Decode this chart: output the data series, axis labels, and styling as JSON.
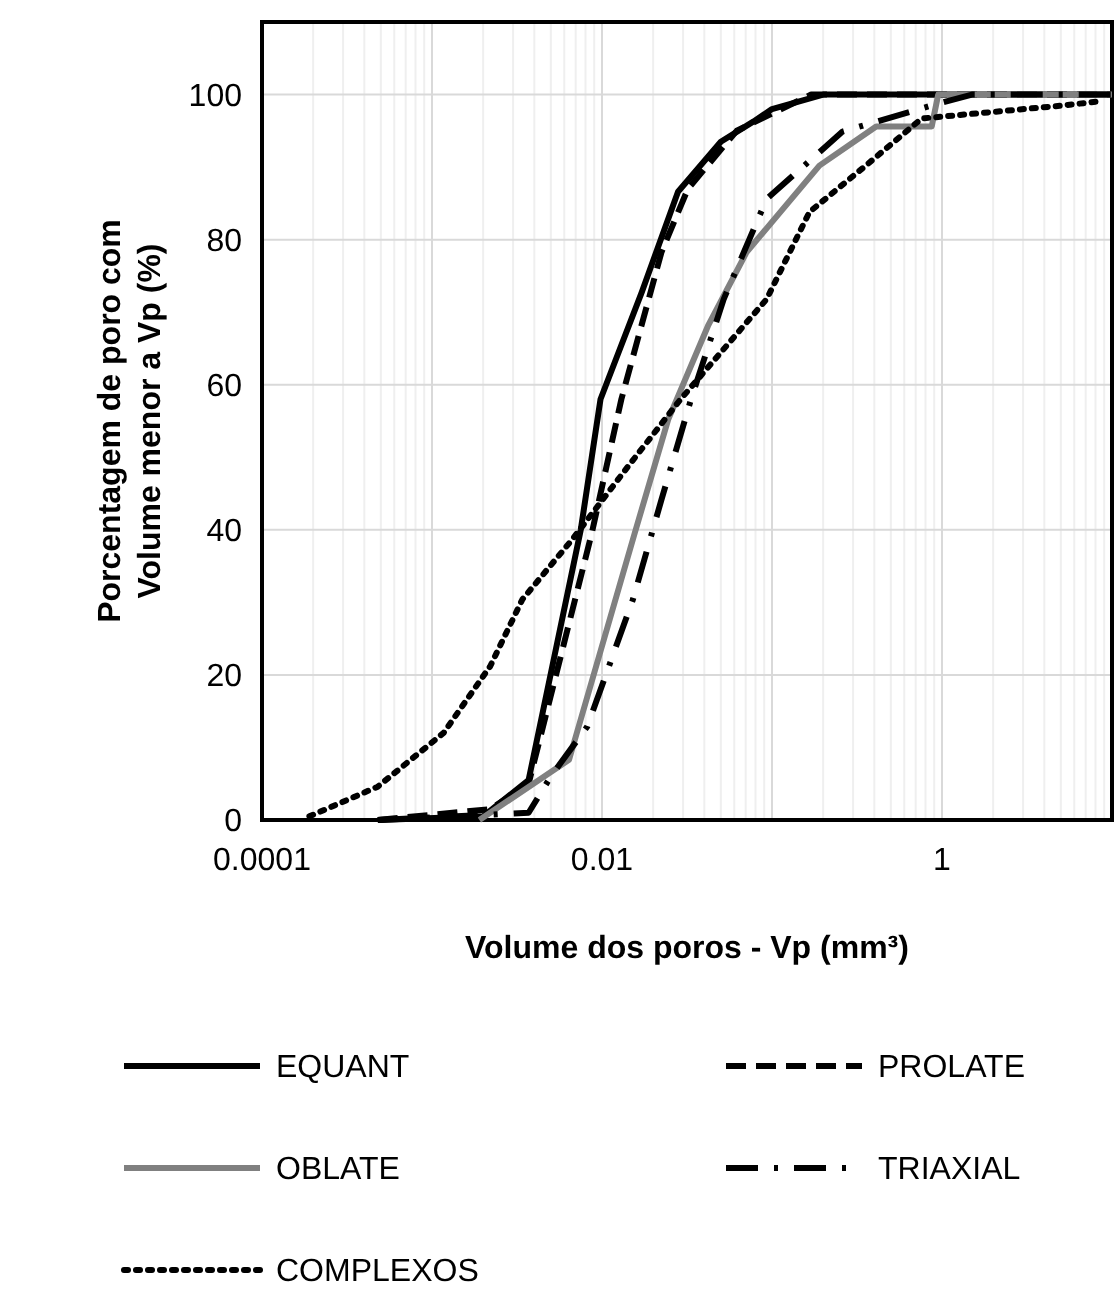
{
  "chart_data": {
    "type": "line",
    "xlabel": "Volume dos poros - Vp (mm³)",
    "ylabel": "Porcentagem de poro com\nVolume menor a  Vp (%)",
    "log": "x",
    "grid": true,
    "legend": "bottom",
    "xlim": [
      0.0001,
      10
    ],
    "xticks": [
      0.0001,
      {
        "value": 0.001,
        "label": null
      },
      0.01,
      {
        "value": 0.1,
        "label": null
      },
      1,
      {
        "value": 10,
        "label": null
      }
    ],
    "ylim": [
      0,
      110
    ],
    "yticks": [
      0,
      20,
      40,
      60,
      80,
      100
    ],
    "series": [
      {
        "name": "EQUANT",
        "color": "#000000",
        "line_style": "solid",
        "x": [
          0.00048,
          0.002,
          0.0037,
          0.0075,
          0.0098,
          0.0171,
          0.028,
          0.05,
          0.078,
          0.1,
          0.2,
          10
        ],
        "values": [
          0,
          0.5,
          5.5,
          40,
          58,
          72.7,
          86.6,
          93.5,
          96.3,
          98,
          100,
          100
        ]
      },
      {
        "name": "PROLATE",
        "color": "#000000",
        "line_style": "dashed",
        "x": [
          0.00048,
          0.0022,
          0.0037,
          0.0087,
          0.013,
          0.0224,
          0.032,
          0.062,
          0.17,
          10
        ],
        "values": [
          0,
          1.5,
          5,
          39.5,
          58,
          78.3,
          87,
          95,
          100,
          100
        ]
      },
      {
        "name": "OBLATE",
        "color": "#808080",
        "line_style": "solid",
        "x": [
          0.0019,
          0.0064,
          0.0156,
          0.0245,
          0.042,
          0.071,
          0.19,
          0.41,
          0.87,
          0.95,
          10
        ],
        "values": [
          0,
          8.3,
          39.6,
          55.2,
          68.1,
          78.3,
          90.2,
          95.6,
          95.6,
          100,
          100
        ]
      },
      {
        "name": "TRIAXIAL",
        "color": "#000000",
        "line_style": "dashdot",
        "x": [
          0.00048,
          0.0037,
          0.005,
          0.0082,
          0.0152,
          0.0224,
          0.0334,
          0.052,
          0.093,
          0.26,
          0.87,
          1.5,
          10
        ],
        "values": [
          0,
          1,
          6,
          12.9,
          30.4,
          44.2,
          58,
          71.8,
          85.6,
          94.9,
          98.5,
          100,
          100
        ]
      },
      {
        "name": "COMPLEXOS",
        "color": "#000000",
        "line_style": "dotted",
        "x": [
          0.00019,
          0.00048,
          0.00117,
          0.0022,
          0.0034,
          0.0067,
          0.0143,
          0.029,
          0.093,
          0.166,
          0.36,
          0.76,
          5.2,
          8
        ],
        "values": [
          0.5,
          4.6,
          12,
          21.2,
          30.4,
          38.7,
          48.8,
          58,
          71.8,
          83.8,
          90.3,
          96.7,
          98.5,
          99
        ]
      }
    ]
  }
}
